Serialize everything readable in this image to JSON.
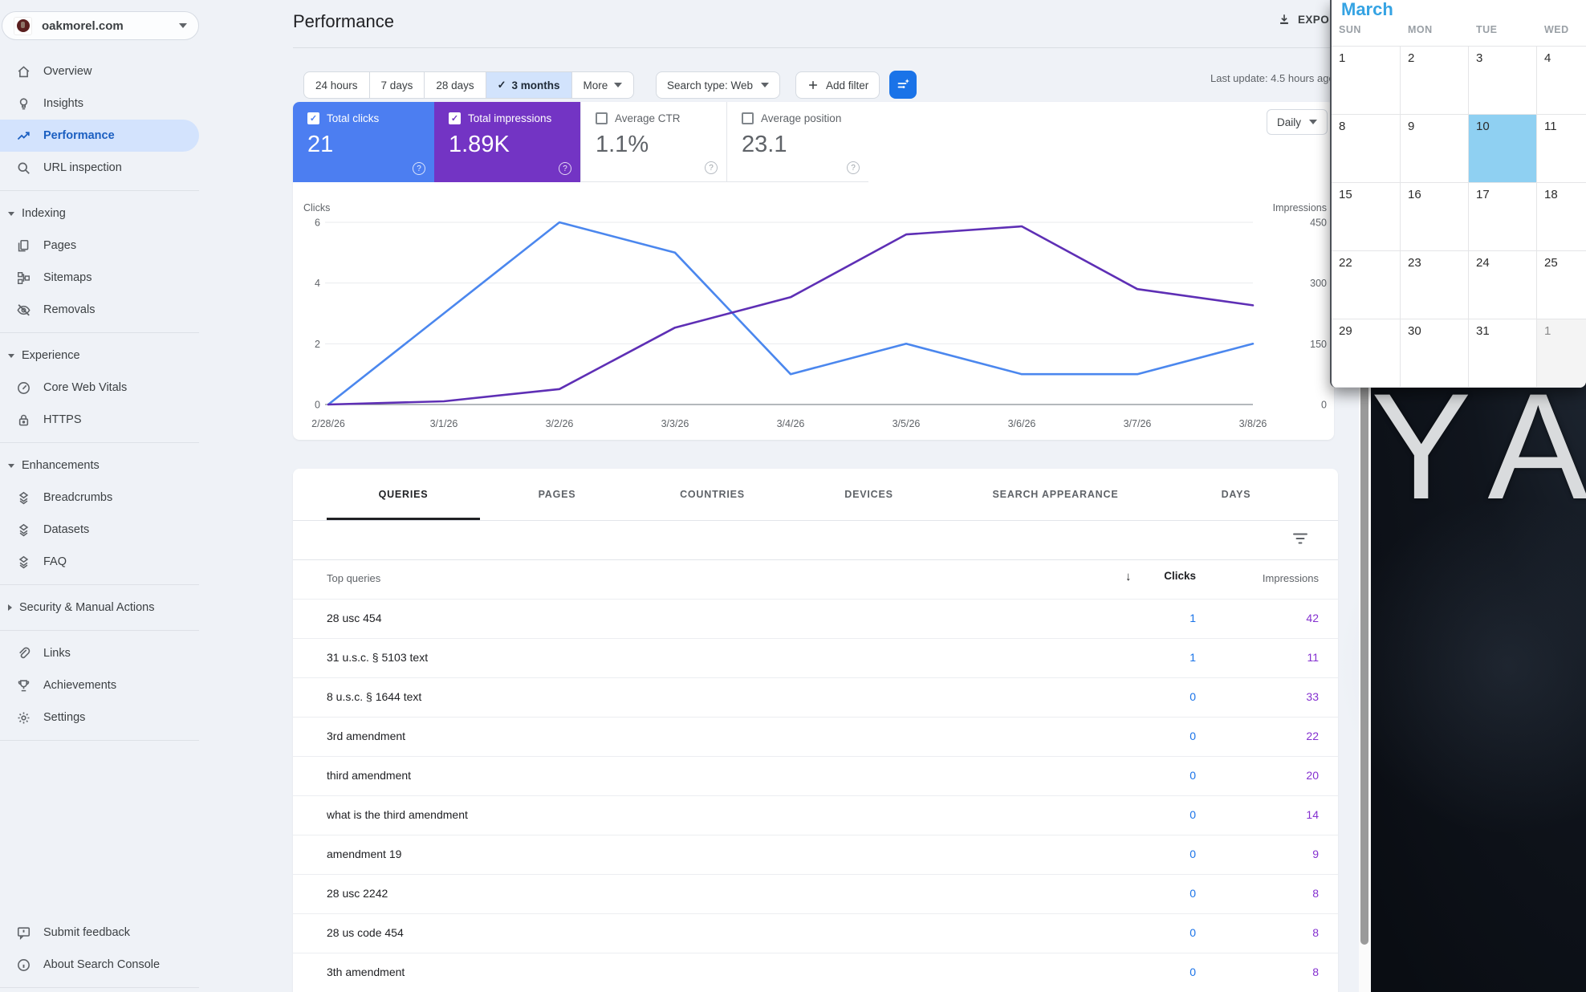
{
  "property": {
    "domain": "oakmorel.com"
  },
  "header": {
    "title": "Performance",
    "export_label": "EXPORT",
    "last_update": "Last update: 4.5 hours ago"
  },
  "sidebar": {
    "sections": [
      {
        "items": [
          {
            "icon": "home",
            "label": "Overview"
          },
          {
            "icon": "lightbulb",
            "label": "Insights"
          },
          {
            "icon": "trending",
            "label": "Performance",
            "selected": true
          },
          {
            "icon": "search",
            "label": "URL inspection"
          }
        ],
        "divider_after": true
      },
      {
        "header": {
          "label": "Indexing",
          "state": "expanded"
        },
        "items": [
          {
            "icon": "pages",
            "label": "Pages"
          },
          {
            "icon": "sitemap",
            "label": "Sitemaps"
          },
          {
            "icon": "eye-off",
            "label": "Removals"
          }
        ],
        "divider_after": true
      },
      {
        "header": {
          "label": "Experience",
          "state": "expanded"
        },
        "items": [
          {
            "icon": "gauge",
            "label": "Core Web Vitals"
          },
          {
            "icon": "lock",
            "label": "HTTPS"
          }
        ],
        "divider_after": true
      },
      {
        "header": {
          "label": "Enhancements",
          "state": "expanded"
        },
        "items": [
          {
            "icon": "layers",
            "label": "Breadcrumbs"
          },
          {
            "icon": "layers",
            "label": "Datasets"
          },
          {
            "icon": "layers",
            "label": "FAQ"
          }
        ],
        "divider_after": true
      },
      {
        "header": {
          "label": "Security & Manual Actions",
          "state": "collapsed"
        },
        "items": [],
        "divider_after": true
      },
      {
        "items": [
          {
            "icon": "link",
            "label": "Links"
          },
          {
            "icon": "trophy",
            "label": "Achievements"
          },
          {
            "icon": "gear",
            "label": "Settings"
          }
        ],
        "divider_after": true
      }
    ],
    "footer_items": [
      {
        "icon": "feedback",
        "label": "Submit feedback"
      },
      {
        "icon": "info",
        "label": "About Search Console"
      }
    ]
  },
  "filters": {
    "date_ranges": [
      "24 hours",
      "7 days",
      "28 days",
      "3 months",
      "More"
    ],
    "selected_range": "3 months",
    "search_type": "Search type: Web",
    "add_filter_label": "Add filter"
  },
  "metrics": [
    {
      "label": "Total clicks",
      "value": "21",
      "checked": true,
      "color": "#4c7ef1"
    },
    {
      "label": "Total impressions",
      "value": "1.89K",
      "checked": true,
      "color": "#7334c4"
    },
    {
      "label": "Average CTR",
      "value": "1.1%",
      "checked": false
    },
    {
      "label": "Average position",
      "value": "23.1",
      "checked": false
    }
  ],
  "chart_controls": {
    "granularity": "Daily"
  },
  "chart_data": {
    "type": "line",
    "x": [
      "2/28/26",
      "3/1/26",
      "3/2/26",
      "3/3/26",
      "3/4/26",
      "3/5/26",
      "3/6/26",
      "3/7/26",
      "3/8/26"
    ],
    "series": [
      {
        "name": "Clicks",
        "axis": "left",
        "color": "#4b87ee",
        "values": [
          0,
          3,
          6,
          5,
          1,
          2,
          1,
          1,
          2
        ]
      },
      {
        "name": "Impressions",
        "axis": "right",
        "color": "#5e2fb5",
        "values": [
          0,
          8,
          38,
          190,
          265,
          420,
          440,
          285,
          245
        ]
      }
    ],
    "left_axis": {
      "label": "Clicks",
      "ticks": [
        0,
        2,
        4,
        6
      ],
      "range": [
        0,
        6
      ]
    },
    "right_axis": {
      "label": "Impressions",
      "ticks": [
        0,
        150,
        300,
        450
      ],
      "range": [
        0,
        450
      ]
    },
    "grid": true,
    "legend": "none"
  },
  "table": {
    "tabs": [
      "QUERIES",
      "PAGES",
      "COUNTRIES",
      "DEVICES",
      "SEARCH APPEARANCE",
      "DAYS"
    ],
    "active_tab": "QUERIES",
    "columns": {
      "dimension": "Top queries",
      "clicks": "Clicks",
      "impressions": "Impressions"
    },
    "sort_arrow": "↓",
    "rows": [
      {
        "query": "28 usc 454",
        "clicks": "1",
        "impressions": "42"
      },
      {
        "query": "31 u.s.c. § 5103 text",
        "clicks": "1",
        "impressions": "11"
      },
      {
        "query": "8 u.s.c. § 1644 text",
        "clicks": "0",
        "impressions": "33"
      },
      {
        "query": "3rd amendment",
        "clicks": "0",
        "impressions": "22"
      },
      {
        "query": "third amendment",
        "clicks": "0",
        "impressions": "20"
      },
      {
        "query": "what is the third amendment",
        "clicks": "0",
        "impressions": "14"
      },
      {
        "query": "amendment 19",
        "clicks": "0",
        "impressions": "9"
      },
      {
        "query": "28 usc 2242",
        "clicks": "0",
        "impressions": "8"
      },
      {
        "query": "28 us code 454",
        "clicks": "0",
        "impressions": "8"
      },
      {
        "query": "3th amendment",
        "clicks": "0",
        "impressions": "8"
      }
    ]
  },
  "calendar": {
    "title": "March",
    "weekday_headers": [
      "SUN",
      "MON",
      "TUE",
      "WED"
    ],
    "weeks": [
      [
        {
          "d": "1"
        },
        {
          "d": "2"
        },
        {
          "d": "3"
        },
        {
          "d": "4"
        }
      ],
      [
        {
          "d": "8"
        },
        {
          "d": "9"
        },
        {
          "d": "10",
          "selected": true
        },
        {
          "d": "11"
        }
      ],
      [
        {
          "d": "15"
        },
        {
          "d": "16"
        },
        {
          "d": "17"
        },
        {
          "d": "18"
        }
      ],
      [
        {
          "d": "22"
        },
        {
          "d": "23"
        },
        {
          "d": "24"
        },
        {
          "d": "25"
        }
      ],
      [
        {
          "d": "29"
        },
        {
          "d": "30"
        },
        {
          "d": "31"
        },
        {
          "d": "1",
          "other_month": true
        }
      ]
    ],
    "accent_color": "#35a3e3",
    "highlight_color": "#8fd0f2"
  },
  "background_window": {
    "text": "YA"
  },
  "colors": {
    "clicks_blue": "#4c7ef1",
    "impressions_purple": "#7334c4",
    "table_clicks": "#1a73e8",
    "table_impressions": "#8430d0",
    "accent": "#1a73e8",
    "selected_nav": "#d3e3fd",
    "selected_range_bg": "#d2e3fc"
  }
}
